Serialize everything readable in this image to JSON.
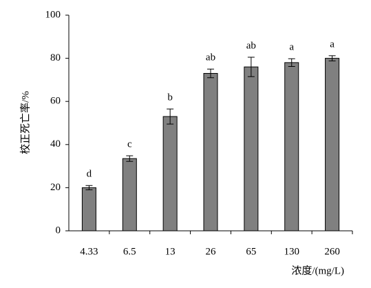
{
  "chart_data": {
    "type": "bar",
    "x_label": "浓度/(mg/L)",
    "y_label": "校正死亡率/%",
    "categories": [
      "4.33",
      "6.5",
      "13",
      "26",
      "65",
      "130",
      "260"
    ],
    "values": [
      20,
      33.5,
      53,
      73,
      76,
      78,
      80
    ],
    "errors": [
      1,
      1.3,
      3.5,
      2,
      4.5,
      1.8,
      1.2
    ],
    "annotations": [
      "d",
      "c",
      "b",
      "ab",
      "ab",
      "a",
      "a"
    ],
    "color": "#808080",
    "ylim": [
      0,
      100
    ],
    "yticks": [
      0,
      20,
      40,
      60,
      80,
      100
    ],
    "grid": false
  }
}
